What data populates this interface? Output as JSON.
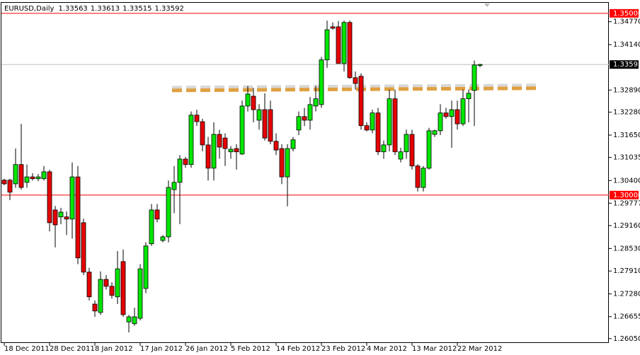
{
  "chart_data": {
    "type": "candlestick",
    "title": "EURUSD,Daily",
    "categories": [
      "18 Dec 2011",
      null,
      null,
      null,
      null,
      null,
      null,
      null,
      "28 Dec 2011",
      null,
      null,
      null,
      null,
      null,
      null,
      null,
      "8 Jan 2012",
      null,
      null,
      null,
      null,
      null,
      null,
      null,
      "17 Jan 2012",
      null,
      null,
      null,
      null,
      null,
      null,
      null,
      "26 Jan 2012",
      null,
      null,
      null,
      null,
      null,
      null,
      null,
      "5 Feb 2012",
      null,
      null,
      null,
      null,
      null,
      null,
      null,
      "14 Feb 2012",
      null,
      null,
      null,
      null,
      null,
      null,
      null,
      "23 Feb 2012",
      null,
      null,
      null,
      null,
      null,
      null,
      null,
      "4 Mar 2012",
      null,
      null,
      null,
      null,
      null,
      null,
      null,
      "13 Mar 2012",
      null,
      null,
      null,
      null,
      null,
      null,
      null,
      "22 Mar 2012",
      null,
      null,
      null,
      null
    ],
    "open": [
      1.3041,
      1.3041,
      1.3031,
      1.3084,
      1.3035,
      1.305,
      1.3045,
      1.3045,
      1.3064,
      1.2959,
      1.294,
      1.294,
      1.2934,
      1.305,
      1.2924,
      1.2788,
      1.27,
      1.2677,
      1.2768,
      1.2749,
      1.272,
      1.2817,
      1.2651,
      1.2646,
      1.2661,
      1.2743,
      1.2866,
      1.2959,
      1.2875,
      1.2885,
      1.3015,
      1.3035,
      1.3099,
      1.3084,
      1.322,
      1.3202,
      1.3138,
      1.3074,
      1.3167,
      1.3157,
      1.3119,
      1.3128,
      1.3113,
      1.3245,
      1.3272,
      1.3206,
      1.3235,
      1.3235,
      1.3148,
      1.3128,
      1.305,
      1.3128,
      1.3179,
      1.3216,
      1.3206,
      1.3245,
      1.3249,
      1.3372,
      1.3463,
      1.3463,
      1.3362,
      1.3475,
      1.3323,
      1.3327,
      1.3191,
      1.3179,
      1.3226,
      1.3119,
      1.3138,
      1.3265,
      1.3099,
      1.3119,
      1.3167,
      1.308,
      1.3021,
      1.3074,
      1.3167,
      1.3177,
      1.3226,
      1.3216,
      1.3235,
      1.3196,
      1.3265,
      1.3288,
      1.33563
    ],
    "high": [
      1.3045,
      1.3045,
      1.3128,
      1.3196,
      1.3084,
      1.306,
      1.3058,
      1.308,
      1.307,
      1.297,
      1.2965,
      1.2955,
      1.309,
      1.308,
      1.2935,
      1.28,
      1.271,
      1.279,
      1.278,
      1.276,
      1.2846,
      1.285,
      1.267,
      1.269,
      1.281,
      1.287,
      1.2975,
      1.2975,
      1.289,
      1.304,
      1.308,
      1.311,
      1.3105,
      1.323,
      1.3235,
      1.321,
      1.316,
      1.32,
      1.318,
      1.317,
      1.3135,
      1.314,
      1.326,
      1.33,
      1.3295,
      1.325,
      1.328,
      1.326,
      1.317,
      1.314,
      1.314,
      1.316,
      1.323,
      1.324,
      1.327,
      1.33,
      1.338,
      1.348,
      1.3475,
      1.3479,
      1.348,
      1.348,
      1.334,
      1.3335,
      1.32,
      1.3235,
      1.324,
      1.315,
      1.329,
      1.329,
      1.313,
      1.318,
      1.318,
      1.3085,
      1.308,
      1.3185,
      1.318,
      1.325,
      1.324,
      1.326,
      1.326,
      1.329,
      1.329,
      1.337,
      1.33613
    ],
    "low": [
      1.3027,
      1.2986,
      1.302,
      1.3015,
      1.302,
      1.304,
      1.3038,
      1.304,
      1.29,
      1.2856,
      1.292,
      1.289,
      1.288,
      1.281,
      1.278,
      1.271,
      1.2665,
      1.267,
      1.274,
      1.2715,
      1.27,
      1.2665,
      1.2622,
      1.264,
      1.2655,
      1.273,
      1.286,
      1.2925,
      1.287,
      1.287,
      1.295,
      1.292,
      1.3075,
      1.3075,
      1.319,
      1.312,
      1.304,
      1.304,
      1.31,
      1.308,
      1.31,
      1.307,
      1.311,
      1.323,
      1.32,
      1.318,
      1.315,
      1.314,
      1.311,
      1.303,
      1.2969,
      1.312,
      1.3165,
      1.319,
      1.318,
      1.323,
      1.324,
      1.335,
      1.3455,
      1.337,
      1.334,
      1.332,
      1.329,
      1.318,
      1.3175,
      1.317,
      1.311,
      1.31,
      1.312,
      1.311,
      1.309,
      1.31,
      1.307,
      1.301,
      1.301,
      1.307,
      1.316,
      1.3165,
      1.321,
      1.313,
      1.318,
      1.319,
      1.32,
      1.319,
      1.33515
    ],
    "close": [
      1.3031,
      1.3008,
      1.3084,
      1.3021,
      1.305,
      1.3045,
      1.305,
      1.3064,
      1.2924,
      1.2918,
      1.2953,
      1.2934,
      1.305,
      1.2827,
      1.2788,
      1.272,
      1.2681,
      1.2768,
      1.2749,
      1.2724,
      1.2797,
      1.2671,
      1.2665,
      1.2665,
      1.2797,
      1.286,
      1.2959,
      1.2934,
      1.2885,
      1.3021,
      1.3035,
      1.3099,
      1.3084,
      1.322,
      1.3202,
      1.3138,
      1.3074,
      1.3167,
      1.3132,
      1.3128,
      1.3126,
      1.3119,
      1.3245,
      1.3278,
      1.3235,
      1.3235,
      1.3157,
      1.3148,
      1.3124,
      1.305,
      1.3128,
      1.3152,
      1.3216,
      1.3206,
      1.3249,
      1.3265,
      1.3372,
      1.3455,
      1.3459,
      1.3362,
      1.3475,
      1.3323,
      1.3307,
      1.3191,
      1.3179,
      1.3226,
      1.3119,
      1.3138,
      1.3265,
      1.3119,
      1.3119,
      1.3167,
      1.308,
      1.3021,
      1.3074,
      1.3177,
      1.3177,
      1.3226,
      1.3216,
      1.3235,
      1.3196,
      1.3265,
      1.328,
      1.3358,
      1.33592
    ],
    "up_color": "#00e600",
    "down_color": "#e60000",
    "ylim": [
      1.2593,
      1.3527
    ],
    "yticks": [
      {
        "value": 1.3477,
        "label": "1.34770"
      },
      {
        "value": 1.3414,
        "label": "1.34140"
      },
      {
        "value": 1.3289,
        "label": "1.32890"
      },
      {
        "value": 1.3228,
        "label": "1.32280"
      },
      {
        "value": 1.3165,
        "label": "1.31650"
      },
      1.31035,
      {
        "value": 1.304,
        "label": "1.30400"
      },
      1.29777,
      {
        "value": 1.2916,
        "label": "1.29160"
      },
      {
        "value": 1.2853,
        "label": "1.28530"
      },
      {
        "value": 1.2791,
        "label": "1.27910"
      },
      {
        "value": 1.2728,
        "label": "1.27280"
      },
      1.26655,
      {
        "value": 1.2605,
        "label": "1.26050"
      }
    ],
    "hlines": [
      {
        "value": 1.35,
        "label": "1.35000",
        "color": "#ff0000"
      },
      {
        "value": 1.3,
        "label": "1.30000",
        "color": "#ff0000"
      }
    ],
    "resistance": [
      1.3288,
      1.3294
    ]
  }
}
